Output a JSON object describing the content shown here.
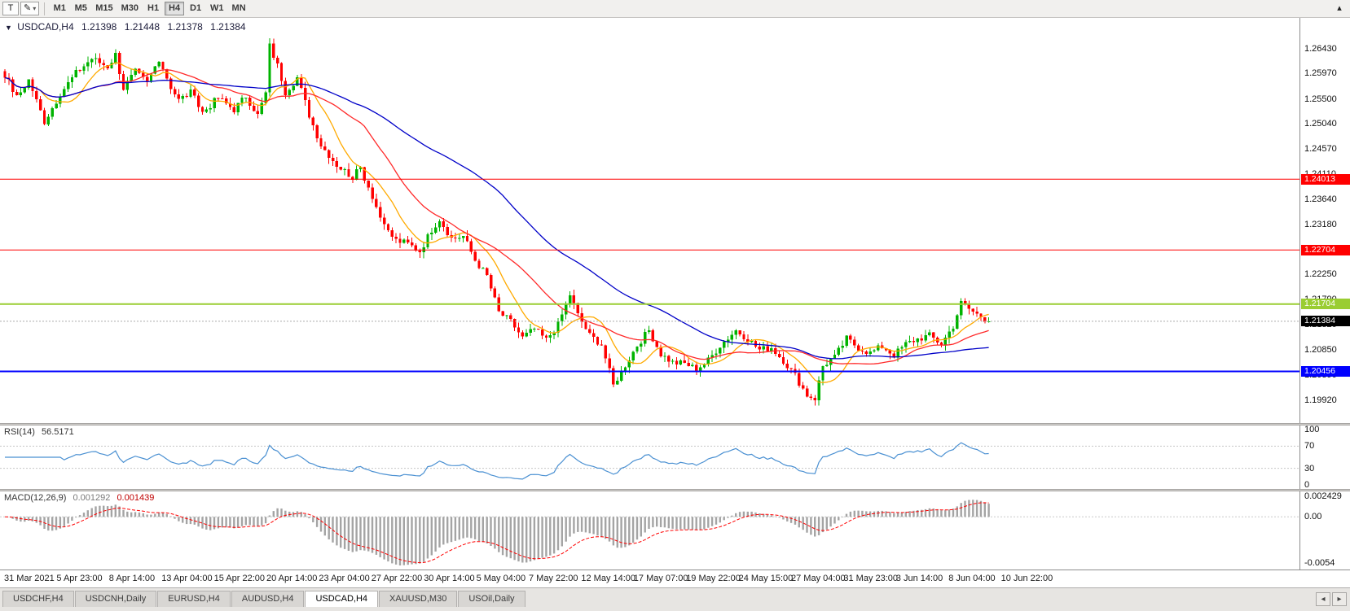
{
  "toolbar": {
    "tool_letter": "T",
    "timeframes": [
      "M1",
      "M5",
      "M15",
      "M30",
      "H1",
      "H4",
      "D1",
      "W1",
      "MN"
    ],
    "active_timeframe": "H4"
  },
  "icons": {
    "collapse": "▼",
    "pen": "✎",
    "dropdown": "▾",
    "overflow": "▴",
    "tab_prev": "◂",
    "tab_next": "▸"
  },
  "chart_header": {
    "symbol": "USDCAD,H4",
    "open": "1.21398",
    "high": "1.21448",
    "low": "1.21378",
    "close": "1.21384"
  },
  "price_axis": {
    "max": 1.27,
    "min": 1.195,
    "ticks": [
      "1.26430",
      "1.25970",
      "1.25500",
      "1.25040",
      "1.24570",
      "1.24110",
      "1.23640",
      "1.23180",
      "1.22710",
      "1.22250",
      "1.21790",
      "1.21320",
      "1.20850",
      "1.20390",
      "1.19920"
    ]
  },
  "hlines": [
    {
      "price": 1.24013,
      "label": "1.24013",
      "color": "#ff0000",
      "width": 1
    },
    {
      "price": 1.22704,
      "label": "1.22704",
      "color": "#ff0000",
      "width": 1
    },
    {
      "price": 1.21704,
      "label": "1.21704",
      "color": "#9acd32",
      "width": 2
    },
    {
      "price": 1.20456,
      "label": "1.20456",
      "color": "#0000ff",
      "width": 2
    }
  ],
  "current_price": {
    "value": 1.21384,
    "label": "1.21384",
    "color": "#000000"
  },
  "chart_data": {
    "type": "candlestick",
    "symbol": "USDCAD",
    "timeframe": "H4",
    "candle_count": 250,
    "up_color": "#00b300",
    "down_color": "#ff0000",
    "ma": [
      {
        "period": 10,
        "color": "#ffaa00"
      },
      {
        "period": 25,
        "color": "#ff2a2a"
      },
      {
        "period": 60,
        "color": "#0000c8"
      }
    ],
    "anchors": [
      [
        0,
        1.2595
      ],
      [
        3,
        1.2552
      ],
      [
        6,
        1.2585
      ],
      [
        10,
        1.2508
      ],
      [
        14,
        1.256
      ],
      [
        18,
        1.2598
      ],
      [
        22,
        1.2625
      ],
      [
        26,
        1.261
      ],
      [
        28,
        1.2632
      ],
      [
        30,
        1.257
      ],
      [
        33,
        1.26
      ],
      [
        36,
        1.258
      ],
      [
        39,
        1.2625
      ],
      [
        42,
        1.2572
      ],
      [
        44,
        1.2548
      ],
      [
        47,
        1.2562
      ],
      [
        50,
        1.2525
      ],
      [
        54,
        1.2552
      ],
      [
        58,
        1.253
      ],
      [
        61,
        1.2556
      ],
      [
        64,
        1.252
      ],
      [
        66,
        1.256
      ],
      [
        67,
        1.2648
      ],
      [
        69,
        1.2612
      ],
      [
        71,
        1.2563
      ],
      [
        74,
        1.259
      ],
      [
        77,
        1.252
      ],
      [
        80,
        1.2465
      ],
      [
        84,
        1.2428
      ],
      [
        88,
        1.2405
      ],
      [
        90,
        1.2422
      ],
      [
        93,
        1.237
      ],
      [
        96,
        1.2312
      ],
      [
        99,
        1.2288
      ],
      [
        102,
        1.2282
      ],
      [
        105,
        1.2268
      ],
      [
        108,
        1.2308
      ],
      [
        110,
        1.2328
      ],
      [
        113,
        1.2292
      ],
      [
        116,
        1.2296
      ],
      [
        119,
        1.2252
      ],
      [
        122,
        1.2222
      ],
      [
        125,
        1.2155
      ],
      [
        128,
        1.2138
      ],
      [
        131,
        1.2108
      ],
      [
        134,
        1.2124
      ],
      [
        137,
        1.2104
      ],
      [
        140,
        1.2132
      ],
      [
        143,
        1.2188
      ],
      [
        145,
        1.215
      ],
      [
        148,
        1.2112
      ],
      [
        151,
        1.2096
      ],
      [
        154,
        1.202
      ],
      [
        157,
        1.2058
      ],
      [
        160,
        1.2094
      ],
      [
        163,
        1.2122
      ],
      [
        166,
        1.2078
      ],
      [
        169,
        1.2062
      ],
      [
        172,
        1.206
      ],
      [
        175,
        1.205
      ],
      [
        178,
        1.2066
      ],
      [
        181,
        1.2094
      ],
      [
        185,
        1.2122
      ],
      [
        188,
        1.2106
      ],
      [
        191,
        1.2086
      ],
      [
        194,
        1.209
      ],
      [
        197,
        1.2066
      ],
      [
        200,
        1.2038
      ],
      [
        203,
        1.2002
      ],
      [
        205,
        1.1996
      ],
      [
        207,
        1.2056
      ],
      [
        210,
        1.2072
      ],
      [
        213,
        1.2106
      ],
      [
        216,
        1.209
      ],
      [
        219,
        1.208
      ],
      [
        222,
        1.2092
      ],
      [
        225,
        1.2076
      ],
      [
        228,
        1.2096
      ],
      [
        231,
        1.2106
      ],
      [
        234,
        1.2112
      ],
      [
        237,
        1.2096
      ],
      [
        240,
        1.213
      ],
      [
        242,
        1.2172
      ],
      [
        245,
        1.2156
      ],
      [
        249,
        1.21384
      ]
    ]
  },
  "rsi": {
    "name": "RSI(14)",
    "value": "56.5171",
    "levels": [
      100,
      70,
      30,
      0
    ],
    "line_color": "#4a90d2"
  },
  "macd": {
    "name": "MACD(12,26,9)",
    "value_main": "0.001292",
    "value_signal": "0.001439",
    "axis": [
      "0.002429",
      "0.00",
      "-0.0054"
    ],
    "scale_max": 0.003,
    "scale_min": -0.0062
  },
  "time_axis": {
    "labels": [
      "31 Mar 2021",
      "5 Apr 23:00",
      "8 Apr 14:00",
      "13 Apr 04:00",
      "15 Apr 22:00",
      "20 Apr 14:00",
      "23 Apr 04:00",
      "27 Apr 22:00",
      "30 Apr 14:00",
      "5 May 04:00",
      "7 May 22:00",
      "12 May 14:00",
      "17 May 07:00",
      "19 May 22:00",
      "24 May 15:00",
      "27 May 04:00",
      "31 May 23:00",
      "3 Jun 14:00",
      "8 Jun 04:00",
      "10 Jun 22:00"
    ]
  },
  "tabs": {
    "active": "USDCAD,H4",
    "items": [
      {
        "label": "USDCHF,H4"
      },
      {
        "label": "USDCNH,Daily"
      },
      {
        "label": "EURUSD,H4"
      },
      {
        "label": "AUDUSD,H4"
      },
      {
        "label": "USDCAD,H4"
      },
      {
        "label": "XAUUSD,M30"
      },
      {
        "label": "USOil,Daily"
      }
    ]
  }
}
